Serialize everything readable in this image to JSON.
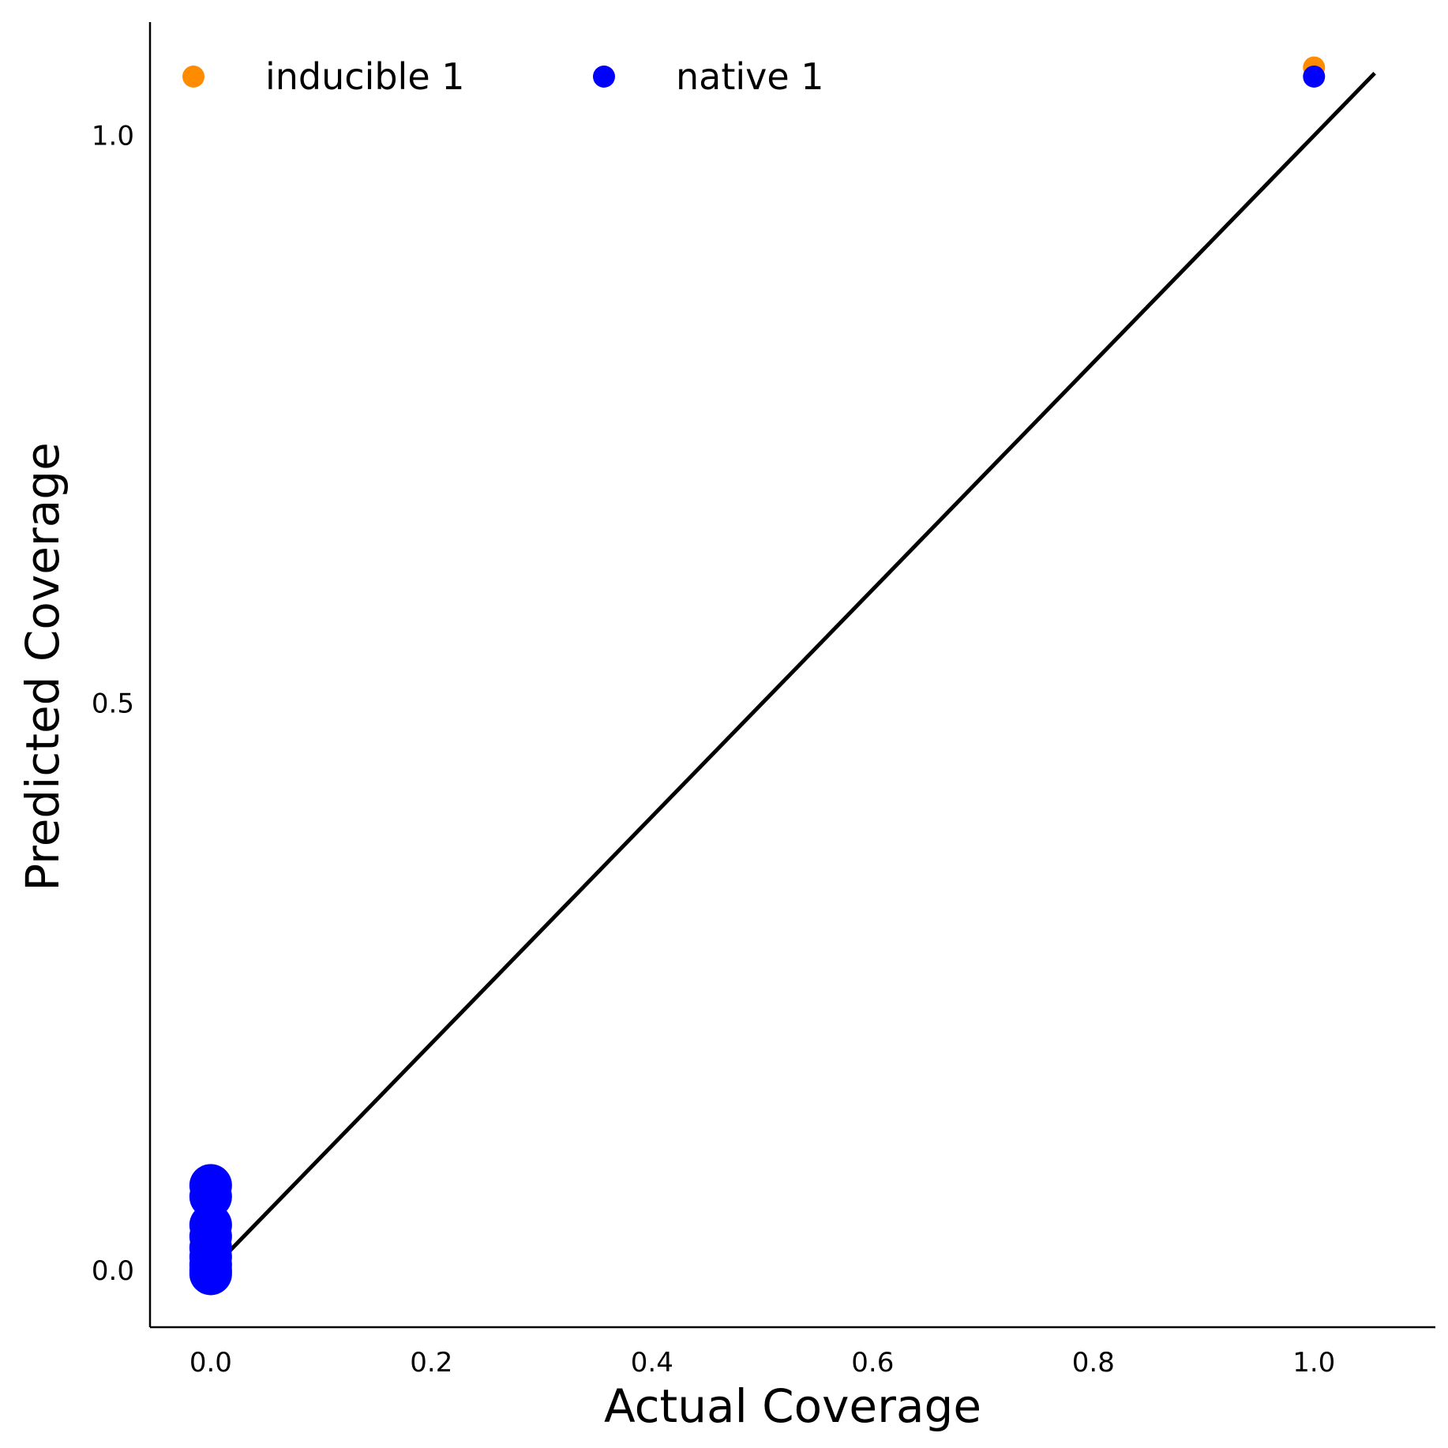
{
  "chart_data": {
    "type": "scatter",
    "xlabel": "Actual Coverage",
    "ylabel": "Predicted Coverage",
    "xlim": [
      -0.055,
      1.11
    ],
    "ylim": [
      -0.05,
      1.1
    ],
    "x_ticks": [
      {
        "value": 0.0,
        "label": "0.0"
      },
      {
        "value": 0.2,
        "label": "0.2"
      },
      {
        "value": 0.4,
        "label": "0.4"
      },
      {
        "value": 0.6,
        "label": "0.6"
      },
      {
        "value": 0.8,
        "label": "0.8"
      },
      {
        "value": 1.0,
        "label": "1.0"
      }
    ],
    "y_ticks": [
      {
        "value": 0.0,
        "label": "0.0"
      },
      {
        "value": 0.5,
        "label": "0.5"
      },
      {
        "value": 1.0,
        "label": "1.0"
      }
    ],
    "grid": false,
    "legend": {
      "placement": "top-left",
      "columns": 2
    },
    "reference_line": {
      "x": [
        0.0,
        1.055
      ],
      "y": [
        0.0,
        1.055
      ],
      "color": "#000000"
    },
    "series": [
      {
        "name": "inducible 1",
        "color": "#ff8c00",
        "marker_size": "small",
        "points": [
          {
            "x": 1.0,
            "y": 1.06
          }
        ]
      },
      {
        "name": "native 1",
        "color": "#0000ff",
        "marker_size": "small",
        "points": [
          {
            "x": 1.0,
            "y": 1.052
          }
        ]
      },
      {
        "name": "",
        "color": "#0000ff",
        "marker_size": "large",
        "points": [
          {
            "x": 0.0,
            "y": 0.075
          },
          {
            "x": 0.0,
            "y": 0.065
          },
          {
            "x": 0.0,
            "y": 0.04
          },
          {
            "x": 0.0,
            "y": 0.03
          },
          {
            "x": 0.0,
            "y": 0.02
          },
          {
            "x": 0.0,
            "y": 0.012
          },
          {
            "x": 0.0,
            "y": 0.005
          },
          {
            "x": 0.0,
            "y": 0.0
          },
          {
            "x": 0.0,
            "y": -0.003
          }
        ]
      }
    ]
  }
}
